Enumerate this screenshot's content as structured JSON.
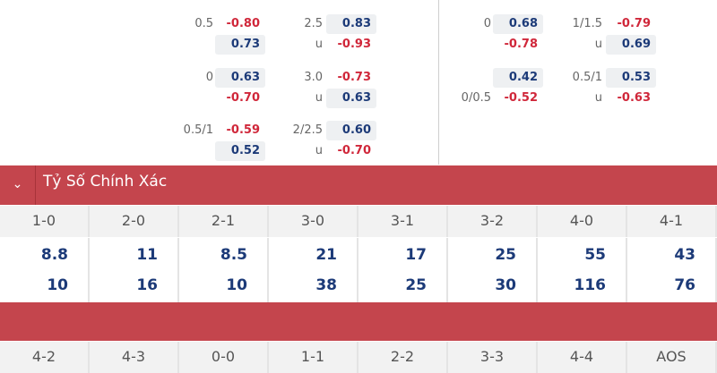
{
  "handicap_left": [
    {
      "line": "0.5",
      "home": "-0.80",
      "home_hl": false,
      "away": "0.73",
      "away_hl": true,
      "ou_line": "2.5",
      "over": "0.83",
      "over_hl": true,
      "under_label": "u",
      "under": "-0.93",
      "under_hl": false
    },
    {
      "line": "0",
      "home": "0.63",
      "home_hl": true,
      "away": "-0.70",
      "away_hl": false,
      "ou_line": "3.0",
      "over": "-0.73",
      "over_hl": false,
      "under_label": "u",
      "under": "0.63",
      "under_hl": true
    },
    {
      "line": "0.5/1",
      "home": "-0.59",
      "home_hl": false,
      "away": "0.52",
      "away_hl": true,
      "ou_line": "2/2.5",
      "over": "0.60",
      "over_hl": true,
      "under_label": "u",
      "under": "-0.70",
      "under_hl": false
    }
  ],
  "handicap_right": [
    {
      "line": "0",
      "line2": "",
      "home": "0.68",
      "home_hl": true,
      "away": "-0.78",
      "away_hl": false,
      "ou_line": "1/1.5",
      "over": "-0.79",
      "over_hl": false,
      "under_label": "u",
      "under": "0.69",
      "under_hl": true
    },
    {
      "line": "",
      "line2": "0/0.5",
      "home": "0.42",
      "home_hl": true,
      "away": "-0.52",
      "away_hl": false,
      "ou_line": "0.5/1",
      "over": "0.53",
      "over_hl": true,
      "under_label": "u",
      "under": "-0.63",
      "under_hl": false
    }
  ],
  "correct_score": {
    "title": "Tỷ Số Chính Xác",
    "icon": "chevron-down-icon",
    "scores": [
      "1-0",
      "2-0",
      "2-1",
      "3-0",
      "3-1",
      "3-2",
      "4-0",
      "4-1"
    ],
    "home_odds": [
      "8.8",
      "11",
      "8.5",
      "21",
      "17",
      "25",
      "55",
      "43"
    ],
    "away_odds": [
      "10",
      "16",
      "10",
      "38",
      "25",
      "30",
      "116",
      "76"
    ],
    "next_scores": [
      "4-2",
      "4-3",
      "0-0",
      "1-1",
      "2-2",
      "3-3",
      "4-4",
      "AOS"
    ]
  },
  "colors": {
    "header_red": "#c4454d",
    "positive": "#1c3a78",
    "negative": "#d0273a"
  }
}
